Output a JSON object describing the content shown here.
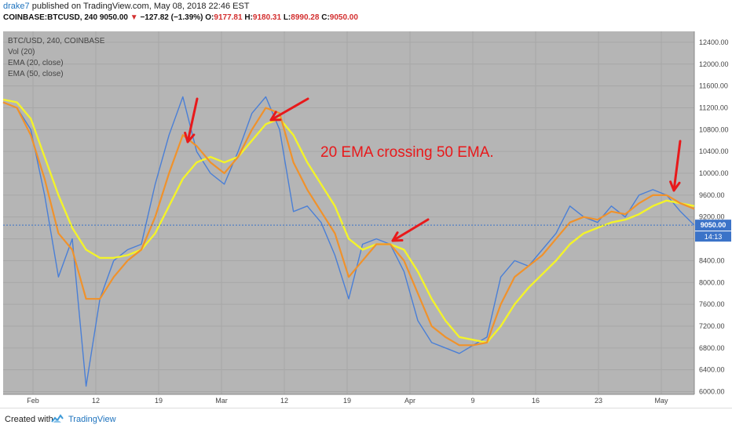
{
  "header": {
    "user": "drake7",
    "published_text": "published on TradingView.com, May 08, 2018 22:46 EST",
    "symbol": "COINBASE:BTCUSD, 240",
    "last": "9050.00",
    "change": "−127.82 (−1.39%)",
    "open_label": "O:",
    "open": "9177.81",
    "high_label": "H:",
    "high": "9180.31",
    "low_label": "L:",
    "low": "8990.28",
    "close_label": "C:",
    "close": "9050.00"
  },
  "footer": {
    "created_with": "Created with",
    "brand": "TradingView"
  },
  "colors": {
    "plot_bg": "#b5b5b5",
    "price": "#4a7fd6",
    "ema20": "#f0922b",
    "ema50": "#f3f32a",
    "arrow": "#e8191b",
    "annotation": "#e8191b",
    "price_tag": "#3b73c8",
    "time_tag": "#3b73c8"
  },
  "chart_data": {
    "type": "line",
    "legend": [
      "BTC/USD, 240, COINBASE",
      "Vol (20)",
      "EMA (20, close)",
      "EMA (50, close)"
    ],
    "legend_placement": "top-left",
    "annotation": "20 EMA crossing 50 EMA.",
    "x_ticks": [
      "Feb",
      "12",
      "19",
      "Mar",
      "12",
      "19",
      "Apr",
      "9",
      "16",
      "23",
      "May"
    ],
    "y_ticks": [
      "6000.00",
      "6400.00",
      "6800.00",
      "7200.00",
      "7600.00",
      "8000.00",
      "8400.00",
      "8800.00",
      "9200.00",
      "9600.00",
      "10000.00",
      "10400.00",
      "10800.00",
      "11200.00",
      "11600.00",
      "12000.00",
      "12400.00"
    ],
    "ylim": [
      5950,
      12600
    ],
    "last_price_label": "9050.00",
    "countdown_label": "14:13",
    "grid": true,
    "series": [
      {
        "name": "BTC/USD",
        "x": [
          0,
          2,
          4,
          6,
          8,
          10,
          12,
          14,
          16,
          18,
          20,
          22,
          24,
          26,
          28,
          30,
          32,
          34,
          36,
          38,
          40,
          42,
          44,
          46,
          48,
          50,
          52,
          54,
          56,
          58,
          60,
          62,
          64,
          66,
          68,
          70,
          72,
          74,
          76,
          78,
          80,
          82,
          84,
          86,
          88,
          90,
          92,
          94,
          96,
          98,
          100
        ],
        "values": [
          11300,
          11200,
          10800,
          9600,
          8100,
          8800,
          6100,
          7700,
          8400,
          8600,
          8700,
          9800,
          10700,
          11400,
          10400,
          10000,
          9800,
          10400,
          11100,
          11400,
          10800,
          9300,
          9400,
          9100,
          8500,
          7700,
          8700,
          8800,
          8700,
          8200,
          7300,
          6900,
          6800,
          6700,
          6850,
          7000,
          8100,
          8400,
          8300,
          8600,
          8900,
          9400,
          9200,
          9100,
          9400,
          9200,
          9600,
          9700,
          9600,
          9300,
          9050
        ]
      },
      {
        "name": "EMA (20, close)",
        "x": [
          0,
          2,
          4,
          6,
          8,
          10,
          12,
          14,
          16,
          18,
          20,
          22,
          24,
          26,
          28,
          30,
          32,
          34,
          36,
          38,
          40,
          42,
          44,
          46,
          48,
          50,
          52,
          54,
          56,
          58,
          60,
          62,
          64,
          66,
          68,
          70,
          72,
          74,
          76,
          78,
          80,
          82,
          84,
          86,
          88,
          90,
          92,
          94,
          96,
          98,
          100
        ],
        "values": [
          11300,
          11200,
          10700,
          9900,
          8900,
          8600,
          7700,
          7700,
          8100,
          8400,
          8600,
          9200,
          10000,
          10700,
          10500,
          10200,
          10000,
          10300,
          10800,
          11200,
          11100,
          10200,
          9700,
          9300,
          8900,
          8100,
          8400,
          8700,
          8700,
          8400,
          7800,
          7200,
          7000,
          6850,
          6850,
          6900,
          7600,
          8100,
          8300,
          8500,
          8800,
          9100,
          9200,
          9150,
          9300,
          9250,
          9450,
          9600,
          9600,
          9450,
          9350
        ]
      },
      {
        "name": "EMA (50, close)",
        "x": [
          0,
          2,
          4,
          6,
          8,
          10,
          12,
          14,
          16,
          18,
          20,
          22,
          24,
          26,
          28,
          30,
          32,
          34,
          36,
          38,
          40,
          42,
          44,
          46,
          48,
          50,
          52,
          54,
          56,
          58,
          60,
          62,
          64,
          66,
          68,
          70,
          72,
          74,
          76,
          78,
          80,
          82,
          84,
          86,
          88,
          90,
          92,
          94,
          96,
          98,
          100
        ],
        "values": [
          11350,
          11300,
          11000,
          10300,
          9600,
          9000,
          8600,
          8450,
          8450,
          8500,
          8600,
          8900,
          9400,
          9900,
          10200,
          10300,
          10200,
          10300,
          10600,
          10900,
          11000,
          10700,
          10200,
          9800,
          9400,
          8800,
          8600,
          8700,
          8700,
          8600,
          8200,
          7700,
          7300,
          7000,
          6950,
          6900,
          7200,
          7600,
          7900,
          8150,
          8400,
          8700,
          8900,
          9000,
          9100,
          9150,
          9250,
          9400,
          9500,
          9450,
          9400
        ]
      }
    ]
  }
}
